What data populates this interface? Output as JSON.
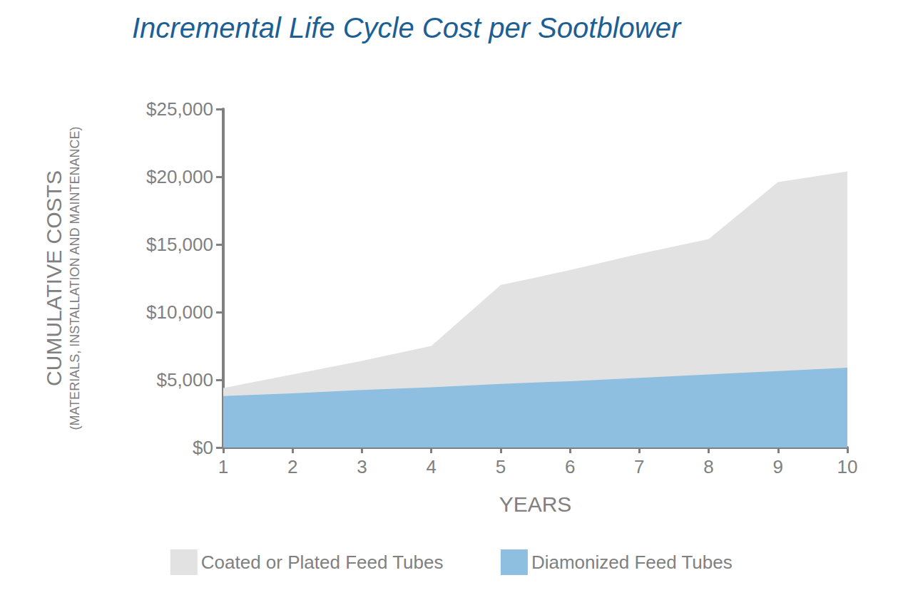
{
  "chart_data": {
    "type": "area",
    "title": "Incremental Life Cycle Cost per Sootblower",
    "xlabel": "YEARS",
    "ylabel": "CUMULATIVE COSTS",
    "ylabel_note": "(MATERIALS, INSTALLATION AND MAINTENANCE)",
    "x": [
      1,
      2,
      3,
      4,
      5,
      6,
      7,
      8,
      9,
      10
    ],
    "series": [
      {
        "name": "Coated or Plated Feed Tubes",
        "color": "#e2e2e2",
        "values": [
          4400,
          5400,
          6400,
          7500,
          12000,
          13100,
          14300,
          15400,
          19600,
          20400
        ]
      },
      {
        "name": "Diamonized Feed Tubes",
        "color": "#8fbfe0",
        "values": [
          3800,
          4000,
          4250,
          4450,
          4700,
          4900,
          5150,
          5400,
          5650,
          5900
        ]
      }
    ],
    "xlim": [
      1,
      10
    ],
    "xticks": [
      1,
      2,
      3,
      4,
      5,
      6,
      7,
      8,
      9,
      10
    ],
    "ylim": [
      0,
      25000
    ],
    "yticks": [
      {
        "value": 0,
        "label": "$0"
      },
      {
        "value": 5000,
        "label": "$5,000"
      },
      {
        "value": 10000,
        "label": "$10,000"
      },
      {
        "value": 15000,
        "label": "$15,000"
      },
      {
        "value": 20000,
        "label": "$20,000"
      },
      {
        "value": 25000,
        "label": "$25,000"
      }
    ],
    "grid": false,
    "legend": "bottom",
    "stacked": false
  }
}
